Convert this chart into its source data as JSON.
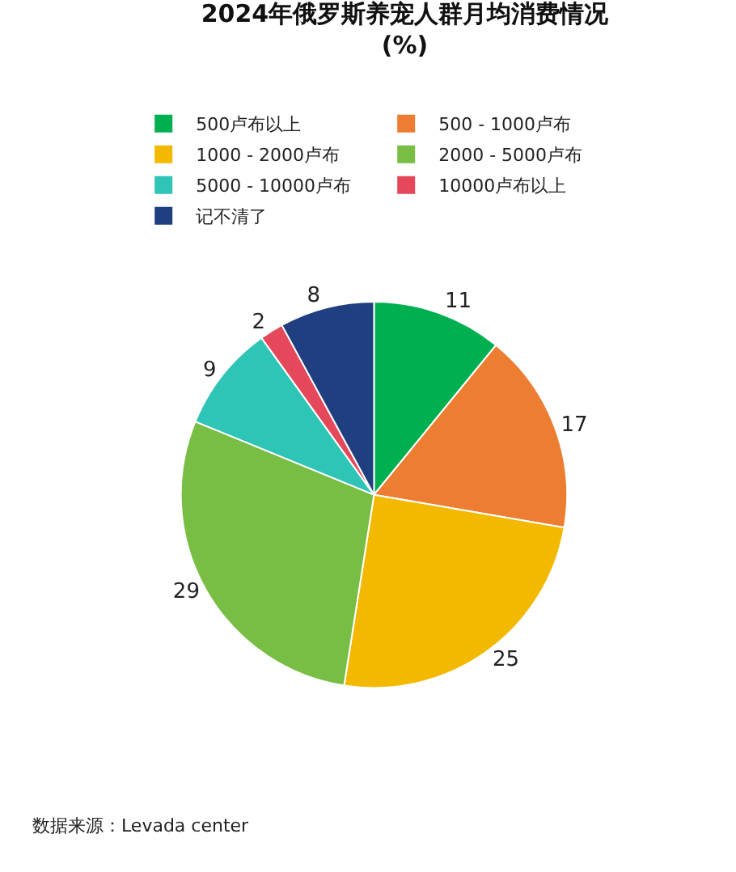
{
  "chart_data": {
    "type": "pie",
    "title": "2024年俄罗斯养宠人群月均消费情况",
    "subtitle": "(%)",
    "categories": [
      "500卢布以上",
      "500 - 1000卢布",
      "1000 - 2000卢布",
      "2000 - 5000卢布",
      "5000 - 10000卢布",
      "10000卢布以上",
      "记不清了"
    ],
    "values": [
      11,
      17,
      25,
      29,
      9,
      2,
      8
    ],
    "colors": [
      "#00b050",
      "#ed7d31",
      "#f2b900",
      "#78bd44",
      "#2ec4b6",
      "#e5485a",
      "#1f3f80"
    ],
    "data_labels": true,
    "legend": "top",
    "annotations": [
      "数据来源：Levada center"
    ]
  }
}
